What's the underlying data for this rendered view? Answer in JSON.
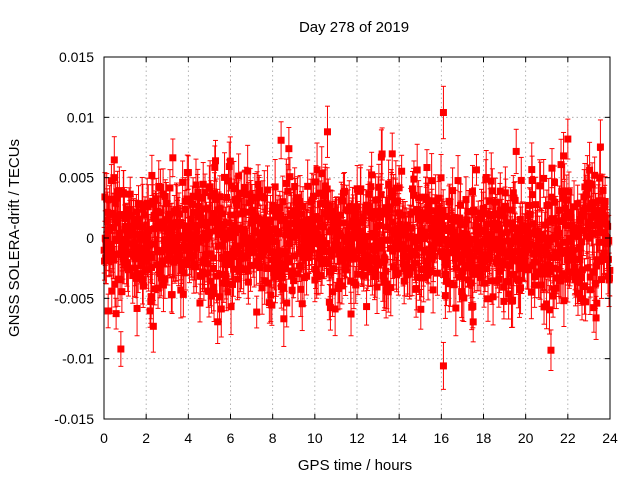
{
  "chart_data": {
    "type": "scatter",
    "title": "Day 278 of 2019",
    "xlabel": "GPS time / hours",
    "ylabel": "GNSS SOLERA-drift / TECUs",
    "xlim": [
      0,
      24
    ],
    "ylim": [
      -0.015,
      0.015
    ],
    "x_ticks": [
      "0",
      "2",
      "4",
      "6",
      "8",
      "10",
      "12",
      "14",
      "16",
      "18",
      "20",
      "22",
      "24"
    ],
    "y_ticks": [
      "-0.015",
      "-0.01",
      "-0.005",
      "0",
      "0.005",
      "0.01",
      "0.015"
    ],
    "grid": true,
    "series_color": "#ff0000",
    "notable_points": [
      {
        "x": 16.1,
        "y": 0.0104
      },
      {
        "x": 16.1,
        "y": -0.0106
      },
      {
        "x": 0.8,
        "y": -0.0092
      },
      {
        "x": 21.2,
        "y": -0.0093
      },
      {
        "x": 8.4,
        "y": 0.0081
      },
      {
        "x": 10.6,
        "y": 0.0088
      },
      {
        "x": 22.0,
        "y": 0.0082
      }
    ],
    "noise_envelope": {
      "center": 0.0,
      "typical_abs": 0.0025,
      "max_abs": 0.0105,
      "error_bar_half": 0.0018
    }
  }
}
